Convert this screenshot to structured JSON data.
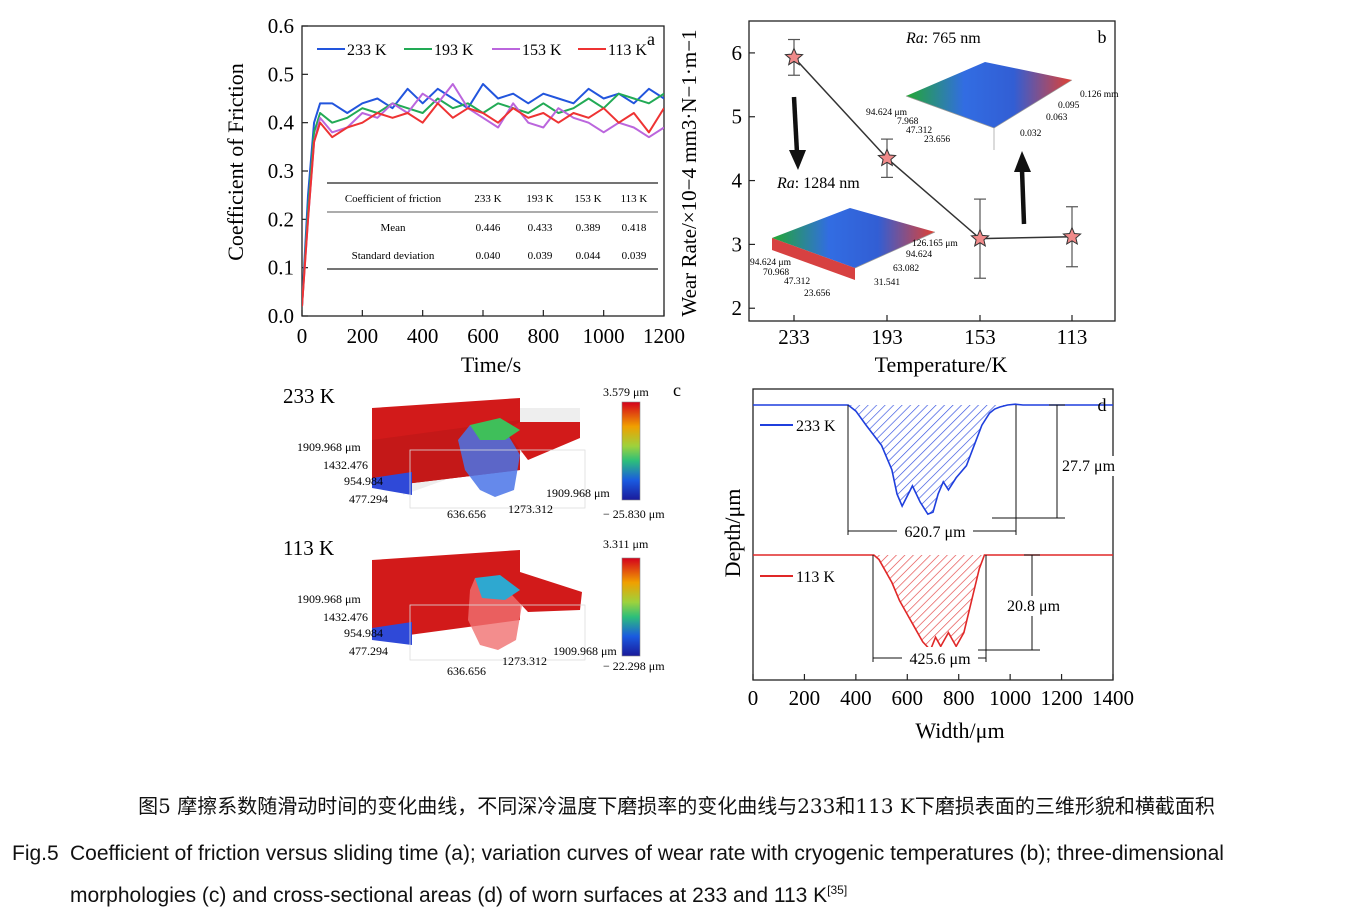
{
  "captions": {
    "cn": "图5 摩擦系数随滑动时间的变化曲线，不同深冷温度下磨损率的变化曲线与233和113 K下磨损表面的三维形貌和横截面积",
    "en_label": "Fig.5",
    "en_line1": "Coefficient of friction versus sliding time (a); variation curves of wear rate with cryogenic temperatures (b); three-dimensional",
    "en_line2": "morphologies (c) and cross-sectional areas (d) of worn surfaces at 233 and 113 K",
    "en_ref": "[35]"
  },
  "chart_data": [
    {
      "panel": "a",
      "type": "line",
      "xlabel": "Time/s",
      "ylabel": "Coefficient of Friction",
      "xlim": [
        0,
        1200
      ],
      "ylim": [
        0,
        0.6
      ],
      "xticks": [
        "0",
        "200",
        "400",
        "600",
        "800",
        "1000",
        "1200"
      ],
      "yticks": [
        "0.0",
        "0.1",
        "0.2",
        "0.3",
        "0.4",
        "0.5",
        "0.6"
      ],
      "legend": "top",
      "series": [
        {
          "name": "233 K",
          "color": "#2255dd",
          "x": [
            0,
            20,
            40,
            60,
            100,
            150,
            200,
            250,
            300,
            350,
            400,
            450,
            500,
            550,
            600,
            650,
            700,
            750,
            800,
            850,
            900,
            950,
            1000,
            1050,
            1100,
            1150,
            1200
          ],
          "y": [
            0.02,
            0.25,
            0.4,
            0.44,
            0.44,
            0.42,
            0.44,
            0.45,
            0.43,
            0.47,
            0.44,
            0.47,
            0.45,
            0.43,
            0.48,
            0.45,
            0.46,
            0.44,
            0.46,
            0.45,
            0.44,
            0.47,
            0.45,
            0.46,
            0.44,
            0.47,
            0.45
          ]
        },
        {
          "name": "193 K",
          "color": "#22aa55",
          "x": [
            0,
            20,
            40,
            60,
            100,
            150,
            200,
            250,
            300,
            350,
            400,
            450,
            500,
            550,
            600,
            650,
            700,
            750,
            800,
            850,
            900,
            950,
            1000,
            1050,
            1100,
            1150,
            1200
          ],
          "y": [
            0.02,
            0.22,
            0.38,
            0.42,
            0.4,
            0.41,
            0.43,
            0.42,
            0.44,
            0.43,
            0.42,
            0.45,
            0.43,
            0.44,
            0.42,
            0.44,
            0.43,
            0.42,
            0.44,
            0.42,
            0.43,
            0.45,
            0.43,
            0.46,
            0.45,
            0.44,
            0.46
          ]
        },
        {
          "name": "153 K",
          "color": "#bb66dd",
          "x": [
            0,
            20,
            40,
            60,
            100,
            150,
            200,
            250,
            300,
            350,
            400,
            450,
            500,
            550,
            600,
            650,
            700,
            750,
            800,
            850,
            900,
            950,
            1000,
            1050,
            1100,
            1150,
            1200
          ],
          "y": [
            0.02,
            0.2,
            0.36,
            0.41,
            0.38,
            0.39,
            0.42,
            0.41,
            0.44,
            0.42,
            0.46,
            0.44,
            0.48,
            0.43,
            0.41,
            0.39,
            0.44,
            0.4,
            0.39,
            0.43,
            0.41,
            0.4,
            0.38,
            0.4,
            0.39,
            0.37,
            0.39
          ]
        },
        {
          "name": "113 K",
          "color": "#ee3333",
          "x": [
            0,
            20,
            40,
            60,
            100,
            150,
            200,
            250,
            300,
            350,
            400,
            450,
            500,
            550,
            600,
            650,
            700,
            750,
            800,
            850,
            900,
            950,
            1000,
            1050,
            1100,
            1150,
            1200
          ],
          "y": [
            0.02,
            0.2,
            0.36,
            0.4,
            0.37,
            0.39,
            0.4,
            0.42,
            0.41,
            0.42,
            0.4,
            0.44,
            0.41,
            0.43,
            0.42,
            0.4,
            0.43,
            0.41,
            0.42,
            0.4,
            0.42,
            0.41,
            0.43,
            0.4,
            0.42,
            0.38,
            0.43
          ]
        }
      ],
      "table": {
        "headers": [
          "Coefficient of friction",
          "233 K",
          "193 K",
          "153 K",
          "113 K"
        ],
        "rows": [
          [
            "Mean",
            "0.446",
            "0.433",
            "0.389",
            "0.418"
          ],
          [
            "Standard deviation",
            "0.040",
            "0.039",
            "0.044",
            "0.039"
          ]
        ]
      }
    },
    {
      "panel": "b",
      "type": "scatter",
      "xlabel": "Temperature/K",
      "ylabel": "Wear Rate/×10−4 mm3·N−1·m−1",
      "categories": [
        "233",
        "193",
        "153",
        "113"
      ],
      "values": [
        5.93,
        4.35,
        3.09,
        3.12
      ],
      "errors": [
        0.28,
        0.3,
        0.62,
        0.47
      ],
      "ylim": [
        1.8,
        6.5
      ],
      "yticks": [
        "2",
        "3",
        "4",
        "5",
        "6"
      ],
      "annotations": [
        {
          "label": "Ra",
          "value": ": 765 nm"
        },
        {
          "label": "Ra",
          "value": ": 1284 nm"
        }
      ],
      "inset_top_labels": [
        "94.624 μm",
        "7.968",
        "47.312",
        "23.656",
        "0.126 mm",
        "0.095",
        "0.063",
        "0.032"
      ],
      "inset_bottom_labels": [
        "94.624 μm",
        "70.968",
        "47.312",
        "23.656",
        "126.165 μm",
        "94.624",
        "63.082",
        "31.541"
      ]
    },
    {
      "panel": "c",
      "type": "heatmap",
      "plots": [
        {
          "title": "233 K",
          "colorbar": [
            "3.579 μm",
            "− 25.830 μm"
          ],
          "y_labels": [
            "1909.968 μm",
            "1432.476",
            "954.984",
            "477.294"
          ],
          "x_labels": [
            "636.656",
            "1273.312",
            "1909.968 μm"
          ]
        },
        {
          "title": "113 K",
          "colorbar": [
            "3.311 μm",
            "− 22.298 μm"
          ],
          "y_labels": [
            "1909.968 μm",
            "1432.476",
            "954.984",
            "477.294"
          ],
          "x_labels": [
            "636.656",
            "1273.312",
            "1909.968 μm"
          ]
        }
      ]
    },
    {
      "panel": "d",
      "type": "line",
      "xlabel": "Width/μm",
      "ylabel": "Depth/μm",
      "xlim": [
        0,
        1400
      ],
      "xticks": [
        "0",
        "200",
        "400",
        "600",
        "800",
        "1000",
        "1200",
        "1400"
      ],
      "series": [
        {
          "name": "233 K",
          "color": "#1f3fdd",
          "x": [
            0,
            370,
            400,
            440,
            500,
            540,
            560,
            580,
            620,
            650,
            680,
            700,
            720,
            740,
            760,
            790,
            830,
            860,
            890,
            920,
            940,
            960,
            990,
            1020,
            1050,
            1400
          ],
          "y": [
            0,
            0,
            -1.5,
            -5,
            -10,
            -16,
            -22,
            -25,
            -20,
            -24,
            -27,
            -26.5,
            -22,
            -19,
            -21,
            -18,
            -15,
            -10,
            -5,
            -2,
            -1,
            -0.5,
            0,
            0.2,
            0,
            0
          ]
        },
        {
          "name": "113 K",
          "color": "#e02828",
          "x": [
            0,
            470,
            490,
            510,
            540,
            570,
            600,
            630,
            660,
            690,
            710,
            730,
            760,
            790,
            820,
            850,
            880,
            900,
            1400
          ],
          "y": [
            0,
            0,
            -1,
            -3,
            -6,
            -10,
            -13,
            -16,
            -19,
            -20.8,
            -18,
            -20,
            -17,
            -20,
            -17,
            -10,
            -3,
            0,
            0
          ]
        }
      ],
      "dimensions": [
        {
          "series": "233 K",
          "depth": "27.7 μm",
          "width": "620.7 μm"
        },
        {
          "series": "113 K",
          "depth": "20.8 μm",
          "width": "425.6 μm"
        }
      ]
    }
  ],
  "panel_letters": {
    "a": "a",
    "b": "b",
    "c": "c",
    "d": "d"
  }
}
